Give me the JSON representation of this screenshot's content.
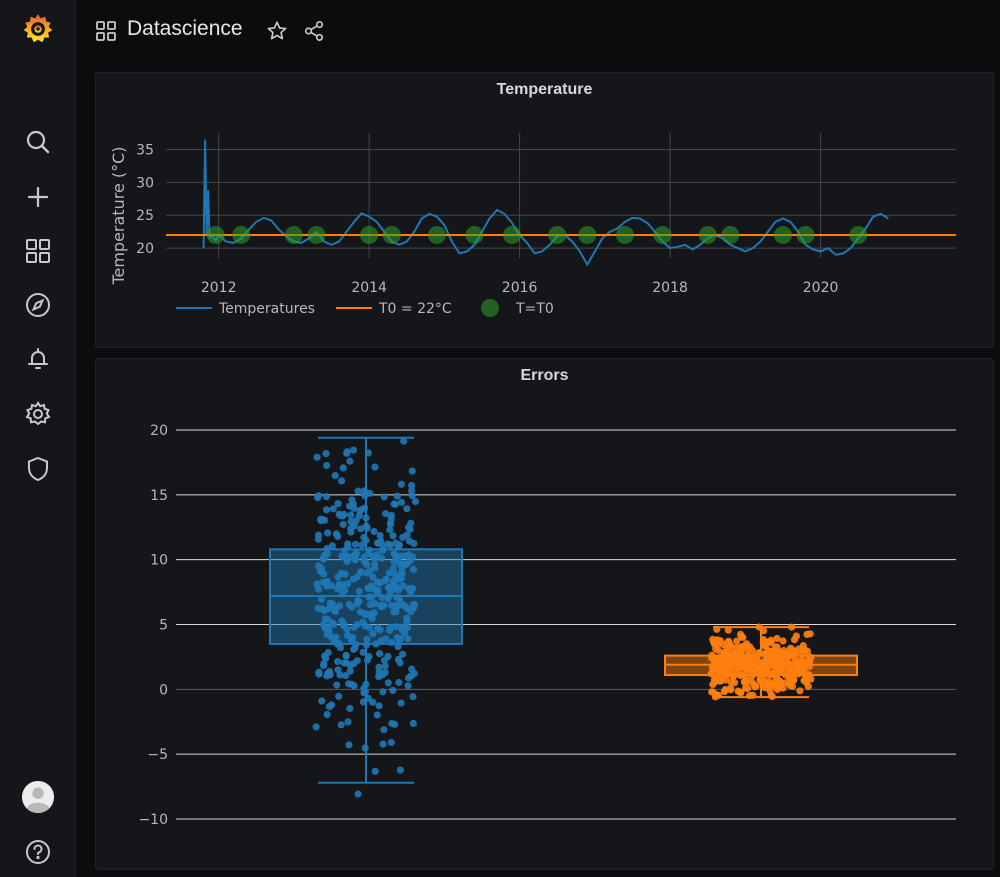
{
  "dashboard": {
    "title": "Datascience"
  },
  "sidebar": {
    "items": [
      {
        "name": "search-icon"
      },
      {
        "name": "create-icon"
      },
      {
        "name": "dashboards-icon"
      },
      {
        "name": "explore-icon"
      },
      {
        "name": "alerting-icon"
      },
      {
        "name": "configuration-icon"
      },
      {
        "name": "server-admin-icon"
      }
    ]
  },
  "panels": {
    "temperature": {
      "title": "Temperature"
    },
    "errors": {
      "title": "Errors"
    }
  },
  "colors": {
    "blue": "#1f77b4",
    "orange": "#ff7f0e",
    "green": "#2ca02c",
    "background": "#0b0c0e",
    "panel": "#141619"
  },
  "chart_data": [
    {
      "type": "line",
      "title": "Temperature",
      "xlabel": "",
      "ylabel": "Temperature (°C)",
      "xlim": [
        2011.3,
        2021.8
      ],
      "ylim": [
        18.5,
        37.5
      ],
      "xticks": [
        "2012",
        "2014",
        "2016",
        "2018",
        "2020"
      ],
      "yticks": [
        "20",
        "25",
        "30",
        "35"
      ],
      "grid": true,
      "legend_position": "bottom-left",
      "legend": [
        "Temperatures",
        "T0 = 22°C",
        "T=T0"
      ],
      "series": [
        {
          "name": "Temperatures",
          "color": "#1f77b4",
          "x": [
            2011.8,
            2011.82,
            2011.84,
            2011.86,
            2011.88,
            2011.9,
            2011.93,
            2011.96,
            2012.0,
            2012.1,
            2012.2,
            2012.3,
            2012.4,
            2012.5,
            2012.6,
            2012.7,
            2012.8,
            2012.9,
            2013.0,
            2013.1,
            2013.2,
            2013.3,
            2013.4,
            2013.5,
            2013.6,
            2013.7,
            2013.8,
            2013.9,
            2014.0,
            2014.1,
            2014.2,
            2014.3,
            2014.4,
            2014.5,
            2014.6,
            2014.7,
            2014.8,
            2014.9,
            2015.0,
            2015.1,
            2015.2,
            2015.3,
            2015.4,
            2015.5,
            2015.6,
            2015.7,
            2015.8,
            2015.9,
            2016.0,
            2016.1,
            2016.2,
            2016.3,
            2016.4,
            2016.5,
            2016.6,
            2016.7,
            2016.8,
            2016.9,
            2017.0,
            2017.1,
            2017.2,
            2017.3,
            2017.4,
            2017.5,
            2017.6,
            2017.7,
            2017.8,
            2017.9,
            2018.0,
            2018.1,
            2018.2,
            2018.3,
            2018.4,
            2018.5,
            2018.6,
            2018.7,
            2018.8,
            2018.9,
            2019.0,
            2019.1,
            2019.2,
            2019.3,
            2019.4,
            2019.5,
            2019.6,
            2019.7,
            2019.8,
            2019.9,
            2020.0,
            2020.1,
            2020.2,
            2020.3,
            2020.4,
            2020.5,
            2020.6,
            2020.7,
            2020.8,
            2020.9
          ],
          "values": [
            20.0,
            36.5,
            22.0,
            28.8,
            21.5,
            22.0,
            21.5,
            21.2,
            22.0,
            21.0,
            20.8,
            21.5,
            22.8,
            24.0,
            24.6,
            24.2,
            22.8,
            21.8,
            21.0,
            20.8,
            21.5,
            22.5,
            21.0,
            20.5,
            21.0,
            22.5,
            24.0,
            25.3,
            24.8,
            24.0,
            22.5,
            21.0,
            20.5,
            21.0,
            22.5,
            24.5,
            25.2,
            24.8,
            23.5,
            21.0,
            19.2,
            19.5,
            20.5,
            22.5,
            24.5,
            25.8,
            25.2,
            23.8,
            22.0,
            20.8,
            19.2,
            19.5,
            20.5,
            21.8,
            22.0,
            21.0,
            19.5,
            17.5,
            19.5,
            21.5,
            22.5,
            23.0,
            24.0,
            24.6,
            24.5,
            23.8,
            22.5,
            21.0,
            20.0,
            20.2,
            20.5,
            19.8,
            20.5,
            21.5,
            22.0,
            21.5,
            20.5,
            20.0,
            19.5,
            20.0,
            21.0,
            22.5,
            24.0,
            24.5,
            24.0,
            22.5,
            20.5,
            19.8,
            19.5,
            20.0,
            19.0,
            19.2,
            20.0,
            21.5,
            23.0,
            24.8,
            25.2,
            24.5
          ]
        },
        {
          "name": "T0 = 22°C",
          "color": "#ff7f0e",
          "x": [
            2011.3,
            2021.8
          ],
          "values": [
            22,
            22
          ]
        },
        {
          "name": "T=T0",
          "color": "#2ca02c",
          "type": "scatter",
          "x": [
            2011.96,
            2012.3,
            2013.0,
            2013.3,
            2014.0,
            2014.3,
            2014.9,
            2015.4,
            2015.9,
            2016.5,
            2016.9,
            2017.4,
            2017.9,
            2018.5,
            2018.8,
            2019.5,
            2019.8,
            2020.5
          ],
          "values": [
            22,
            22,
            22,
            22,
            22,
            22,
            22,
            22,
            22,
            22,
            22,
            22,
            22,
            22,
            22,
            22,
            22,
            22
          ]
        }
      ]
    },
    {
      "type": "box",
      "title": "Errors",
      "xlabel": "",
      "ylabel": "",
      "ylim": [
        -11,
        21
      ],
      "yticks": [
        "−10",
        "−5",
        "0",
        "5",
        "10",
        "15",
        "20"
      ],
      "grid": true,
      "series": [
        {
          "color": "#1f77b4",
          "min": -7.2,
          "q1": 3.5,
          "median": 7.2,
          "q3": 10.8,
          "max": 19.4,
          "points_min": -9.6,
          "points_max": 19.4,
          "points_count": 400
        },
        {
          "color": "#ff7f0e",
          "min": -0.6,
          "q1": 1.1,
          "median": 1.9,
          "q3": 2.6,
          "max": 4.8,
          "points_min": -0.6,
          "points_max": 4.8,
          "points_count": 400
        }
      ]
    }
  ]
}
